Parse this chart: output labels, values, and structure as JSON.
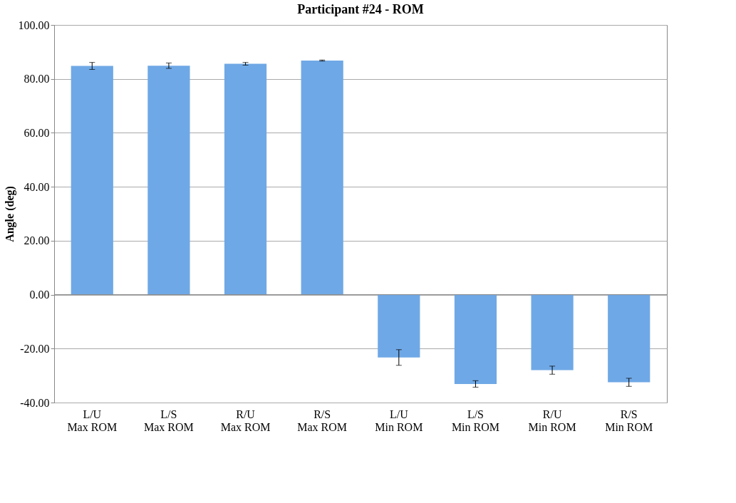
{
  "chart_data": {
    "type": "bar",
    "title": "Participant #24 - ROM",
    "ylabel": "Angle (deg)",
    "categories": [
      "L/U Max ROM",
      "L/S Max ROM",
      "R/U Max ROM",
      "R/S Max ROM",
      "L/U Min ROM",
      "L/S Min ROM",
      "R/U Min ROM",
      "R/S Min ROM"
    ],
    "values": [
      84.8,
      84.9,
      85.6,
      86.8,
      -23.3,
      -33.1,
      -28.0,
      -32.5
    ],
    "errors": [
      1.3,
      1.0,
      0.5,
      0.2,
      2.9,
      1.2,
      1.5,
      1.5
    ],
    "color": "#6fa8e6",
    "ylim": [
      -40,
      100
    ],
    "yticks": [
      {
        "value": -40,
        "label": "-40.00"
      },
      {
        "value": -20,
        "label": "-20.00"
      },
      {
        "value": 0,
        "label": "0.00"
      },
      {
        "value": 20,
        "label": "20.00"
      },
      {
        "value": 40,
        "label": "40.00"
      },
      {
        "value": 60,
        "label": "60.00"
      },
      {
        "value": 80,
        "label": "80.00"
      },
      {
        "value": 100,
        "label": "100.00"
      }
    ],
    "grid": "y"
  }
}
